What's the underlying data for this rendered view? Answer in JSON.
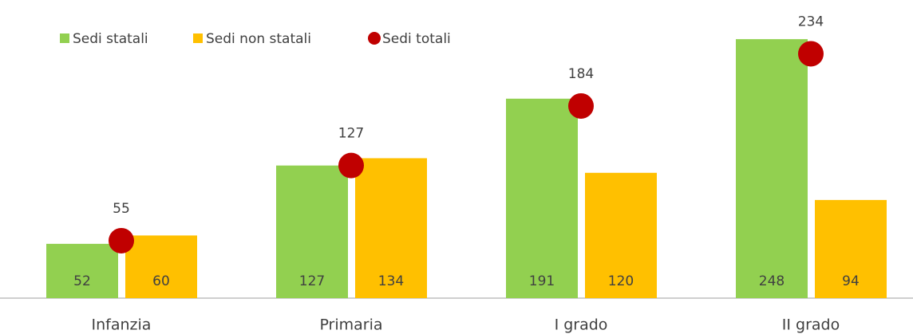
{
  "chart_data": {
    "type": "bar",
    "categories": [
      "Infanzia",
      "Primaria",
      "I grado",
      "II grado"
    ],
    "series": [
      {
        "name": "Sedi statali",
        "color": "#92d050",
        "values": [
          52,
          127,
          191,
          248
        ]
      },
      {
        "name": "Sedi non statali",
        "color": "#ffc000",
        "values": [
          60,
          134,
          120,
          94
        ]
      },
      {
        "name": "Sedi totali",
        "color": "#c00000",
        "type": "scatter",
        "values": [
          55,
          127,
          184,
          234
        ]
      }
    ],
    "legend": "top-left"
  }
}
